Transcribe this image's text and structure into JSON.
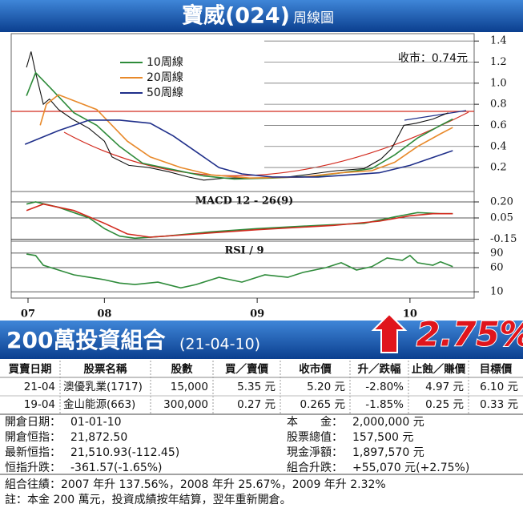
{
  "header": {
    "title": "寶威(024)",
    "subtitle": "周線圖"
  },
  "chart_data": [
    {
      "type": "line",
      "annotation": "收市：0.74元",
      "xlim": [
        2007.39,
        2010.42
      ],
      "ylim": [
        -0.02,
        1.47
      ],
      "yticks": [
        1.4,
        1.2,
        {
          "value": 1,
          "label": "1.0"
        },
        0.8,
        0.6,
        0.4,
        0.2
      ],
      "grid": true,
      "legend": "upper left",
      "series": [
        {
          "color": "#111111",
          "x": [
            2007.49,
            2007.52,
            2007.55,
            2007.6,
            2007.64,
            2007.7,
            2007.79,
            2007.9,
            2008.0,
            2008.05,
            2008.16,
            2008.29,
            2008.42,
            2008.55,
            2008.65,
            2008.79,
            2008.99,
            2009.2,
            2009.36,
            2009.52,
            2009.7,
            2009.81,
            2009.88,
            2009.96,
            2010.04,
            2010.15,
            2010.25
          ],
          "values": [
            1.15,
            1.3,
            1.1,
            0.8,
            0.85,
            0.75,
            0.66,
            0.57,
            0.45,
            0.3,
            0.22,
            0.2,
            0.16,
            0.11,
            0.08,
            0.1,
            0.1,
            0.11,
            0.14,
            0.17,
            0.19,
            0.28,
            0.38,
            0.6,
            0.62,
            0.66,
            0.72
          ]
        },
        {
          "name": "10周線",
          "color": "#2e8b3a",
          "x": [
            2007.49,
            2007.55,
            2007.65,
            2007.8,
            2007.95,
            2008.1,
            2008.25,
            2008.45,
            2008.65,
            2008.85,
            2009.1,
            2009.4,
            2009.6,
            2009.75,
            2009.9,
            2010.05,
            2010.2,
            2010.28
          ],
          "values": [
            0.88,
            1.1,
            0.95,
            0.72,
            0.6,
            0.4,
            0.24,
            0.18,
            0.12,
            0.09,
            0.1,
            0.12,
            0.16,
            0.19,
            0.32,
            0.48,
            0.6,
            0.66
          ]
        },
        {
          "name": "20周線",
          "color": "#e8892a",
          "x": [
            2007.58,
            2007.62,
            2007.7,
            2007.95,
            2008.15,
            2008.3,
            2008.5,
            2008.7,
            2008.95,
            2009.3,
            2009.55,
            2009.75,
            2009.9,
            2010.05,
            2010.2,
            2010.28
          ],
          "values": [
            0.6,
            0.8,
            0.89,
            0.75,
            0.45,
            0.3,
            0.2,
            0.13,
            0.1,
            0.11,
            0.15,
            0.17,
            0.25,
            0.4,
            0.52,
            0.58
          ]
        },
        {
          "name": "50周線",
          "color": "#1f2f8a",
          "x": [
            2007.48,
            2007.7,
            2007.9,
            2008.1,
            2008.3,
            2008.45,
            2008.6,
            2008.75,
            2008.9,
            2009.1,
            2009.4,
            2009.6,
            2009.8,
            2010.0,
            2010.2,
            2010.28
          ],
          "values": [
            0.42,
            0.55,
            0.65,
            0.65,
            0.62,
            0.5,
            0.35,
            0.2,
            0.14,
            0.11,
            0.11,
            0.13,
            0.15,
            0.22,
            0.32,
            0.36
          ]
        }
      ]
    },
    {
      "type": "line",
      "title": "MACD 12 - 26(9)",
      "xlim": [
        2007.39,
        2010.42
      ],
      "ylim": [
        -0.16,
        0.29
      ],
      "yticks": [
        {
          "value": 0.2,
          "label": "0.20"
        },
        0.05,
        -0.15
      ],
      "grid": true,
      "series": [
        {
          "color": "#2e8b3a",
          "x": [
            2007.49,
            2007.55,
            2007.7,
            2007.9,
            2008.0,
            2008.1,
            2008.2,
            2008.4,
            2008.7,
            2009.0,
            2009.4,
            2009.7,
            2009.9,
            2010.05,
            2010.2,
            2010.28
          ],
          "values": [
            0.18,
            0.2,
            0.15,
            0.05,
            -0.05,
            -0.12,
            -0.14,
            -0.12,
            -0.08,
            -0.05,
            -0.02,
            0,
            0.06,
            0.1,
            0.09,
            0.09
          ]
        },
        {
          "color": "#d22a1e",
          "x": [
            2007.49,
            2007.6,
            2007.8,
            2008.0,
            2008.15,
            2008.3,
            2008.6,
            2009.0,
            2009.5,
            2009.8,
            2010.0,
            2010.15,
            2010.28
          ],
          "values": [
            0.12,
            0.18,
            0.12,
            0,
            -0.1,
            -0.13,
            -0.1,
            -0.06,
            -0.02,
            0.02,
            0.07,
            0.09,
            0.09
          ]
        }
      ]
    },
    {
      "type": "line",
      "title": "RSI / 9",
      "xlim": [
        2007.39,
        2010.42
      ],
      "ylim": [
        -3,
        113
      ],
      "yticks": [
        90,
        60,
        10
      ],
      "grid": true,
      "xticks": [
        {
          "value": 2007.5,
          "label": "07"
        },
        {
          "value": 2008,
          "label": "08"
        },
        {
          "value": 2009,
          "label": "09"
        },
        {
          "value": 2010,
          "label": "10"
        }
      ],
      "series": [
        {
          "color": "#2e8b3a",
          "x": [
            2007.49,
            2007.55,
            2007.6,
            2007.7,
            2007.8,
            2007.9,
            2008.0,
            2008.1,
            2008.2,
            2008.35,
            2008.5,
            2008.6,
            2008.75,
            2008.9,
            2009.05,
            2009.2,
            2009.3,
            2009.45,
            2009.55,
            2009.65,
            2009.75,
            2009.85,
            2009.95,
            2010.0,
            2010.05,
            2010.15,
            2010.2,
            2010.28
          ],
          "values": [
            88,
            85,
            65,
            55,
            45,
            40,
            35,
            28,
            25,
            30,
            18,
            25,
            40,
            30,
            45,
            40,
            50,
            60,
            70,
            55,
            62,
            80,
            75,
            85,
            70,
            65,
            72,
            62
          ]
        }
      ]
    }
  ],
  "portfolio": {
    "title": "200萬投資組合",
    "date": "(21-04-10)",
    "change": "2.75%",
    "table": {
      "columns": [
        "買賣日期",
        "股票名稱",
        "股數",
        "買／賣價",
        "收市價",
        "升／跌幅",
        "止蝕／賺價",
        "目標價"
      ],
      "rows": [
        [
          "21-04",
          "澳優乳業(1717)",
          "15,000",
          "5.35 元",
          "5.20 元",
          "-2.80%",
          "4.97 元",
          "6.10 元"
        ],
        [
          "19-04",
          "金山能源(663)",
          "300,000",
          "0.27 元",
          "0.265 元",
          "-1.85%",
          "0.25 元",
          "0.33 元"
        ]
      ]
    },
    "summary": {
      "left": [
        [
          "開倉日期：",
          "01-01-10"
        ],
        [
          "開倉恒指：",
          "21,872.50"
        ],
        [
          "最新恒指：",
          "21,510.93(-112.45)"
        ],
        [
          "恒指升跌：",
          "-361.57(-1.65%)"
        ]
      ],
      "right": [
        [
          "本　　金：",
          "2,000,000 元"
        ],
        [
          "股票總值：",
          "157,500 元"
        ],
        [
          "現金淨額：",
          "1,897,570 元"
        ],
        [
          "組合升跌：",
          "+55,070 元(+2.75%)"
        ]
      ]
    },
    "notes": [
      "組合往績：2007 年升 137.56%，2008 年升 25.67%，2009 年升 2.32%",
      "註：本金 200 萬元，投資成績按年結算，翌年重新開倉。"
    ]
  }
}
